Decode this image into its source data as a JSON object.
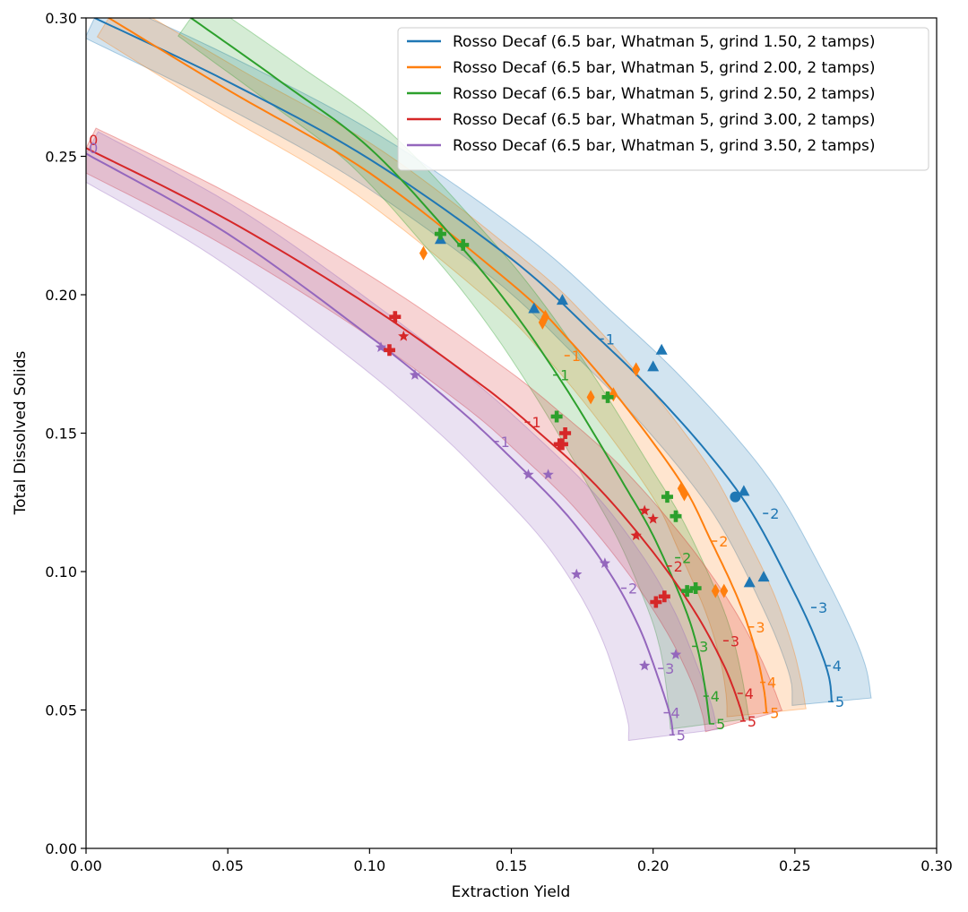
{
  "chart_data": {
    "type": "scatter",
    "xlabel": "Extraction Yield",
    "ylabel": "Total Dissolved Solids",
    "xlim": [
      0.0,
      0.3
    ],
    "ylim": [
      0.0,
      0.3
    ],
    "xticks": [
      "0.00",
      "0.05",
      "0.10",
      "0.15",
      "0.20",
      "0.25",
      "0.30"
    ],
    "yticks": [
      "0.00",
      "0.05",
      "0.10",
      "0.15",
      "0.20",
      "0.25",
      "0.30"
    ],
    "legend_position": "top-right",
    "grid": false,
    "series": [
      {
        "name": "Rosso Decaf (6.5 bar, Whatman 5, grind 1.50, 2 tamps)",
        "color": "#1f77b4",
        "marker": "triangle",
        "curve": [
          [
            0.003,
            0.3
          ],
          [
            0.05,
            0.277
          ],
          [
            0.1,
            0.249
          ],
          [
            0.15,
            0.213
          ],
          [
            0.18,
            0.185
          ],
          [
            0.2,
            0.165
          ],
          [
            0.22,
            0.142
          ],
          [
            0.235,
            0.121
          ],
          [
            0.25,
            0.092
          ],
          [
            0.258,
            0.074
          ],
          [
            0.262,
            0.062
          ],
          [
            0.263,
            0.053
          ]
        ],
        "band": 0.008,
        "curve_labels": [
          {
            "text": "1",
            "x": 0.182,
            "y": 0.184
          },
          {
            "text": "2",
            "x": 0.24,
            "y": 0.121
          },
          {
            "text": "3",
            "x": 0.257,
            "y": 0.087
          },
          {
            "text": "4",
            "x": 0.262,
            "y": 0.066
          },
          {
            "text": "5",
            "x": 0.263,
            "y": 0.053
          }
        ],
        "points": [
          [
            0.125,
            0.22
          ],
          [
            0.158,
            0.195
          ],
          [
            0.168,
            0.198
          ],
          [
            0.2,
            0.174
          ],
          [
            0.203,
            0.18
          ],
          [
            0.232,
            0.129
          ],
          [
            0.234,
            0.096
          ],
          [
            0.239,
            0.098
          ]
        ],
        "extra_points": [
          {
            "marker": "circle",
            "x": 0.229,
            "y": 0.127
          }
        ]
      },
      {
        "name": "Rosso Decaf (6.5 bar, Whatman 5, grind 2.00, 2 tamps)",
        "color": "#ff7f0e",
        "marker": "diamond",
        "curve": [
          [
            0.008,
            0.3
          ],
          [
            0.05,
            0.274
          ],
          [
            0.1,
            0.244
          ],
          [
            0.15,
            0.204
          ],
          [
            0.17,
            0.184
          ],
          [
            0.19,
            0.16
          ],
          [
            0.21,
            0.132
          ],
          [
            0.22,
            0.112
          ],
          [
            0.23,
            0.09
          ],
          [
            0.236,
            0.072
          ],
          [
            0.239,
            0.058
          ],
          [
            0.24,
            0.049
          ]
        ],
        "band": 0.008,
        "curve_labels": [
          {
            "text": "1",
            "x": 0.17,
            "y": 0.178
          },
          {
            "text": "2",
            "x": 0.222,
            "y": 0.111
          },
          {
            "text": "3",
            "x": 0.235,
            "y": 0.08
          },
          {
            "text": "4",
            "x": 0.239,
            "y": 0.06
          },
          {
            "text": "5",
            "x": 0.24,
            "y": 0.049
          }
        ],
        "points": [
          [
            0.119,
            0.215
          ],
          [
            0.161,
            0.19
          ],
          [
            0.162,
            0.192
          ],
          [
            0.178,
            0.163
          ],
          [
            0.186,
            0.164
          ],
          [
            0.194,
            0.173
          ],
          [
            0.21,
            0.13
          ],
          [
            0.211,
            0.128
          ],
          [
            0.222,
            0.093
          ],
          [
            0.225,
            0.093
          ]
        ]
      },
      {
        "name": "Rosso Decaf (6.5 bar, Whatman 5, grind 2.50, 2 tamps)",
        "color": "#2ca02c",
        "marker": "plus",
        "curve": [
          [
            0.037,
            0.3
          ],
          [
            0.07,
            0.276
          ],
          [
            0.1,
            0.253
          ],
          [
            0.13,
            0.22
          ],
          [
            0.15,
            0.195
          ],
          [
            0.17,
            0.165
          ],
          [
            0.19,
            0.131
          ],
          [
            0.2,
            0.113
          ],
          [
            0.21,
            0.09
          ],
          [
            0.215,
            0.075
          ],
          [
            0.218,
            0.06
          ],
          [
            0.22,
            0.045
          ]
        ],
        "band": 0.008,
        "curve_labels": [
          {
            "text": "1",
            "x": 0.166,
            "y": 0.171
          },
          {
            "text": "2",
            "x": 0.209,
            "y": 0.105
          },
          {
            "text": "3",
            "x": 0.215,
            "y": 0.073
          },
          {
            "text": "4",
            "x": 0.219,
            "y": 0.055
          },
          {
            "text": "5",
            "x": 0.221,
            "y": 0.045
          }
        ],
        "points": [
          [
            0.125,
            0.222
          ],
          [
            0.133,
            0.218
          ],
          [
            0.166,
            0.156
          ],
          [
            0.184,
            0.163
          ],
          [
            0.205,
            0.127
          ],
          [
            0.208,
            0.12
          ],
          [
            0.212,
            0.093
          ],
          [
            0.215,
            0.094
          ]
        ]
      },
      {
        "name": "Rosso Decaf (6.5 bar, Whatman 5, grind 3.00, 2 tamps)",
        "color": "#d62728",
        "marker": "plus",
        "curve": [
          [
            0.0,
            0.253
          ],
          [
            0.05,
            0.227
          ],
          [
            0.1,
            0.196
          ],
          [
            0.14,
            0.167
          ],
          [
            0.16,
            0.15
          ],
          [
            0.18,
            0.131
          ],
          [
            0.2,
            0.107
          ],
          [
            0.215,
            0.085
          ],
          [
            0.225,
            0.066
          ],
          [
            0.23,
            0.053
          ],
          [
            0.232,
            0.046
          ]
        ],
        "band": 0.008,
        "curve_labels": [
          {
            "text": "1",
            "x": 0.156,
            "y": 0.154
          },
          {
            "text": "2",
            "x": 0.206,
            "y": 0.102
          },
          {
            "text": "3",
            "x": 0.226,
            "y": 0.075
          },
          {
            "text": "4",
            "x": 0.231,
            "y": 0.056
          },
          {
            "text": "5",
            "x": 0.232,
            "y": 0.046
          }
        ],
        "start_label": {
          "text": "0",
          "x": 0.001,
          "y": 0.256
        },
        "points": [
          [
            0.109,
            0.192
          ],
          [
            0.107,
            0.18
          ],
          [
            0.167,
            0.146
          ],
          [
            0.168,
            0.146
          ],
          [
            0.169,
            0.15
          ],
          [
            0.201,
            0.089
          ],
          [
            0.204,
            0.091
          ]
        ],
        "extra_points": [
          {
            "marker": "star",
            "x": 0.112,
            "y": 0.185
          },
          {
            "marker": "star",
            "x": 0.197,
            "y": 0.122
          },
          {
            "marker": "star",
            "x": 0.2,
            "y": 0.119
          },
          {
            "marker": "star",
            "x": 0.194,
            "y": 0.113
          }
        ]
      },
      {
        "name": "Rosso Decaf (6.5 bar, Whatman 5, grind 3.50, 2 tamps)",
        "color": "#9467bd",
        "marker": "star",
        "curve": [
          [
            0.0,
            0.251
          ],
          [
            0.05,
            0.222
          ],
          [
            0.1,
            0.185
          ],
          [
            0.13,
            0.16
          ],
          [
            0.15,
            0.141
          ],
          [
            0.17,
            0.12
          ],
          [
            0.185,
            0.099
          ],
          [
            0.195,
            0.08
          ],
          [
            0.202,
            0.061
          ],
          [
            0.206,
            0.048
          ],
          [
            0.207,
            0.041
          ]
        ],
        "band": 0.009,
        "curve_labels": [
          {
            "text": "1",
            "x": 0.145,
            "y": 0.147
          },
          {
            "text": "2",
            "x": 0.19,
            "y": 0.094
          },
          {
            "text": "3",
            "x": 0.203,
            "y": 0.065
          },
          {
            "text": "4",
            "x": 0.205,
            "y": 0.049
          },
          {
            "text": "5",
            "x": 0.207,
            "y": 0.041
          }
        ],
        "start_label": {
          "text": "0",
          "x": 0.001,
          "y": 0.253
        },
        "points": [
          [
            0.104,
            0.181
          ],
          [
            0.116,
            0.171
          ],
          [
            0.156,
            0.135
          ],
          [
            0.163,
            0.135
          ],
          [
            0.173,
            0.099
          ],
          [
            0.183,
            0.103
          ],
          [
            0.197,
            0.066
          ],
          [
            0.208,
            0.07
          ]
        ]
      }
    ]
  }
}
